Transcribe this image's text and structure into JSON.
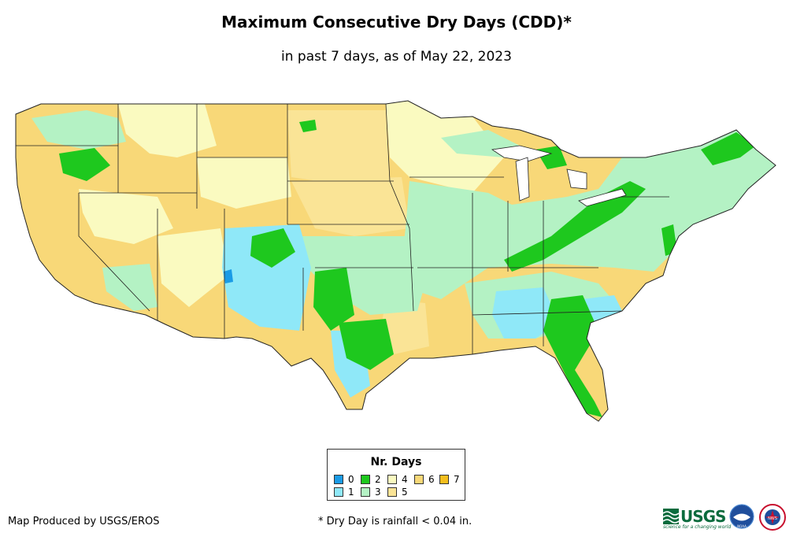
{
  "title": "Maximum Consecutive Dry Days (CDD)*",
  "subtitle": "in past 7 days, as of May 22, 2023",
  "legend": {
    "title": "Nr. Days",
    "items": [
      {
        "label": "0",
        "color": "#1a9be6"
      },
      {
        "label": "1",
        "color": "#8fe8f8"
      },
      {
        "label": "2",
        "color": "#1ec81e"
      },
      {
        "label": "3",
        "color": "#b4f2c4"
      },
      {
        "label": "4",
        "color": "#fafac0"
      },
      {
        "label": "5",
        "color": "#fae496"
      },
      {
        "label": "6",
        "color": "#f8d878"
      },
      {
        "label": "7",
        "color": "#f4be1e"
      }
    ]
  },
  "credit": "Map Produced by USGS/EROS",
  "footnote": "* Dry Day is rainfall < 0.04 in.",
  "logos": {
    "usgs_text": "USGS",
    "usgs_tagline": "science for a changing world",
    "noaa_text": "NOAA",
    "nws_text": "NWS"
  }
}
